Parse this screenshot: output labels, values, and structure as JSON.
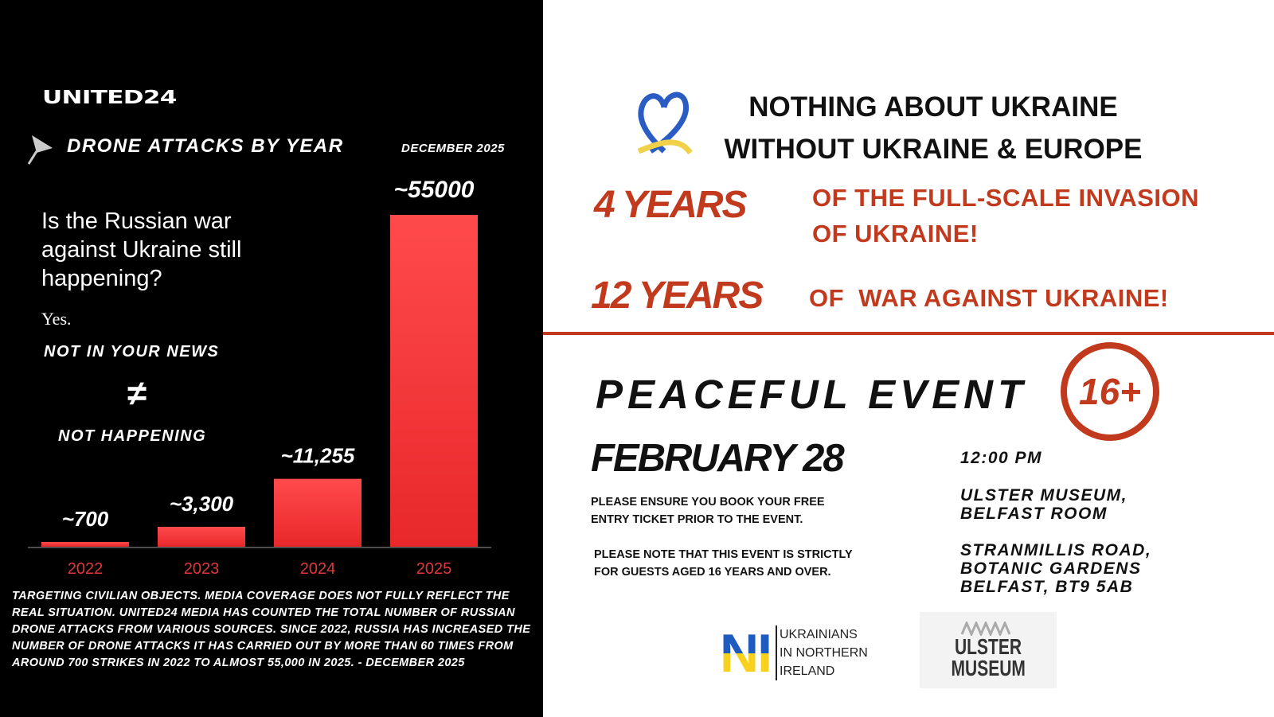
{
  "left": {
    "brand": "UNITED24",
    "chart_title": "DRONE ATTACKS BY YEAR",
    "date": "DECEMBER 2025",
    "question": "Is the Russian war against Ukraine still happening?",
    "answer": "Yes.",
    "not_in_news": "NOT IN YOUR NEWS",
    "not_equal": "≠",
    "not_happening": "NOT HAPPENING",
    "footnote": "TARGETING CIVILIAN OBJECTS. MEDIA COVERAGE DOES NOT FULLY REFLECT THE REAL SITUATION. UNITED24 MEDIA HAS COUNTED THE TOTAL NUMBER OF RUSSIAN DRONE ATTACKS FROM VARIOUS SOURCES. SINCE 2022, RUSSIA HAS INCREASED THE NUMBER OF DRONE ATTACKS IT HAS CARRIED OUT BY MORE THAN 60 TIMES FROM AROUND 700 STRIKES IN 2022 TO ALMOST 55,000 IN 2025. - DECEMBER 2025"
  },
  "chart_data": {
    "type": "bar",
    "title": "DRONE ATTACKS BY YEAR",
    "categories": [
      "2022",
      "2023",
      "2024",
      "2025"
    ],
    "values": [
      700,
      3300,
      11255,
      55000
    ],
    "data_labels": [
      "~700",
      "~3,300",
      "~11,255",
      "~55000"
    ],
    "bar_color": "#e8282b",
    "label_color": "#e0383a",
    "grid": false
  },
  "right": {
    "headline": [
      "NOTHING ABOUT UKRAINE",
      "WITHOUT UKRAINE & EUROPE"
    ],
    "years4": "4 YEARS",
    "years4_text": [
      "OF THE FULL-SCALE INVASION",
      "OF UKRAINE!"
    ],
    "years12": "12 YEARS",
    "years12_text": "OF  WAR AGAINST UKRAINE!",
    "event": "PEACEFUL EVENT",
    "age": "16+",
    "date": "FEBRUARY 28",
    "note1": "PLEASE ENSURE YOU BOOK YOUR FREE ENTRY TICKET PRIOR TO THE EVENT.",
    "note2": "PLEASE NOTE THAT THIS EVENT IS STRICTLY FOR GUESTS AGED 16 YEARS AND OVER.",
    "time": "12:00 PM",
    "venue": [
      "ULSTER MUSEUM,",
      "BELFAST ROOM"
    ],
    "address": [
      "STRANMILLIS ROAD,",
      "BOTANIC GARDENS",
      "BELFAST, BT9 5AB"
    ],
    "org_logo_letters": "NI",
    "org_name": [
      "UKRAINIANS",
      "IN NORTHERN",
      "IRELAND"
    ],
    "museum_logo": [
      "ULSTER",
      "MUSEUM"
    ],
    "accent": "#c23a1e"
  }
}
